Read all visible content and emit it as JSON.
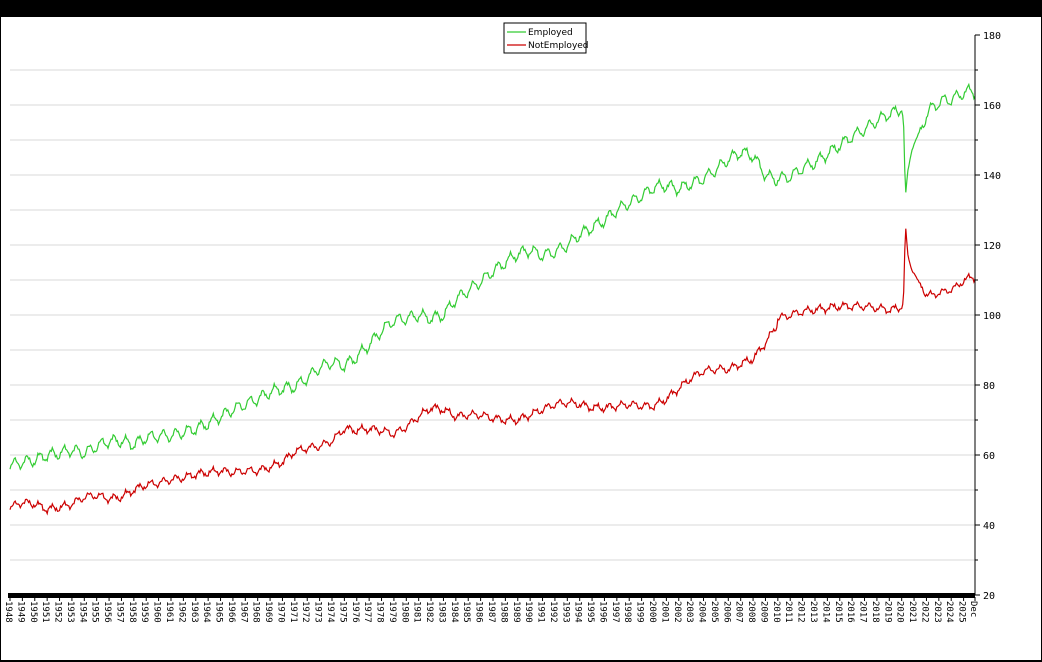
{
  "chart_data": {
    "type": "line",
    "title": "",
    "xlabel": "",
    "ylabel": "",
    "ylim": [
      20,
      180
    ],
    "y_ticks": [
      20,
      40,
      60,
      80,
      100,
      120,
      140,
      160,
      180
    ],
    "x_tick_labels": [
      "1948",
      "1949",
      "1950",
      "1951",
      "1952",
      "1953",
      "1954",
      "1955",
      "1956",
      "1957",
      "1958",
      "1959",
      "1960",
      "1961",
      "1962",
      "1963",
      "1964",
      "1965",
      "1966",
      "1967",
      "1968",
      "1969",
      "1970",
      "1971",
      "1972",
      "1973",
      "1974",
      "1975",
      "1976",
      "1977",
      "1978",
      "1979",
      "1980",
      "1981",
      "1982",
      "1983",
      "1984",
      "1985",
      "1986",
      "1987",
      "1988",
      "1989",
      "1990",
      "1991",
      "1992",
      "1993",
      "1994",
      "1995",
      "1996",
      "1997",
      "1998",
      "1999",
      "2000",
      "2001",
      "2002",
      "2003",
      "2004",
      "2005",
      "2006",
      "2007",
      "2008",
      "2009",
      "2010",
      "2011",
      "2012",
      "2013",
      "2014",
      "2015",
      "2016",
      "2017",
      "2018",
      "2019",
      "2020",
      "2021",
      "2022",
      "2023",
      "2024",
      "2025",
      "Dec"
    ],
    "x_range": [
      1948,
      2025.92
    ],
    "grid": "horizontal",
    "legend_position": "top-center",
    "seasonal_amplitude": {
      "Employed": 1.5,
      "NotEmployed": 0.9
    },
    "series": [
      {
        "name": "Employed",
        "color": "#33cc33",
        "points": [
          [
            1948,
            57
          ],
          [
            1949,
            58
          ],
          [
            1950,
            58.5
          ],
          [
            1951,
            60
          ],
          [
            1952,
            60.5
          ],
          [
            1953,
            61.5
          ],
          [
            1954,
            60.5
          ],
          [
            1955,
            62.5
          ],
          [
            1956,
            64
          ],
          [
            1957,
            64
          ],
          [
            1958,
            63
          ],
          [
            1959,
            65
          ],
          [
            1960,
            65.5
          ],
          [
            1961,
            65.5
          ],
          [
            1962,
            66.5
          ],
          [
            1963,
            67.5
          ],
          [
            1964,
            69
          ],
          [
            1965,
            71
          ],
          [
            1966,
            73
          ],
          [
            1967,
            74.5
          ],
          [
            1968,
            76
          ],
          [
            1969,
            78
          ],
          [
            1970,
            79
          ],
          [
            1971,
            79.5
          ],
          [
            1972,
            82
          ],
          [
            1973,
            85
          ],
          [
            1974,
            86.5
          ],
          [
            1975,
            85.5
          ],
          [
            1976,
            88
          ],
          [
            1977,
            91.5
          ],
          [
            1978,
            95.5
          ],
          [
            1979,
            98.5
          ],
          [
            1980,
            99
          ],
          [
            1981,
            100
          ],
          [
            1982,
            99
          ],
          [
            1983,
            100
          ],
          [
            1984,
            104.5
          ],
          [
            1985,
            107
          ],
          [
            1986,
            109.5
          ],
          [
            1987,
            112.5
          ],
          [
            1988,
            115
          ],
          [
            1989,
            117.5
          ],
          [
            1990,
            118.5
          ],
          [
            1991,
            117
          ],
          [
            1992,
            118
          ],
          [
            1993,
            120
          ],
          [
            1994,
            123
          ],
          [
            1995,
            125
          ],
          [
            1996,
            127
          ],
          [
            1997,
            130
          ],
          [
            1998,
            132
          ],
          [
            1999,
            134
          ],
          [
            2000,
            136.5
          ],
          [
            2001,
            137
          ],
          [
            2002,
            136
          ],
          [
            2003,
            137.5
          ],
          [
            2004,
            139
          ],
          [
            2005,
            141.5
          ],
          [
            2006,
            144.5
          ],
          [
            2007,
            146.5
          ],
          [
            2008,
            145.5
          ],
          [
            2009,
            140
          ],
          [
            2009.9,
            138.5
          ],
          [
            2010,
            139
          ],
          [
            2011,
            139.5
          ],
          [
            2012,
            142
          ],
          [
            2013,
            143.5
          ],
          [
            2014,
            146
          ],
          [
            2015,
            148.5
          ],
          [
            2016,
            151
          ],
          [
            2017,
            153
          ],
          [
            2018,
            155.5
          ],
          [
            2019,
            157.5
          ],
          [
            2020.0,
            158.5
          ],
          [
            2020.15,
            156
          ],
          [
            2020.3,
            133.5
          ],
          [
            2020.5,
            141
          ],
          [
            2020.8,
            147
          ],
          [
            2021,
            149
          ],
          [
            2021.5,
            152.5
          ],
          [
            2022,
            157
          ],
          [
            2022.5,
            159.5
          ],
          [
            2023,
            160.5
          ],
          [
            2023.5,
            161.5
          ],
          [
            2024,
            161.5
          ],
          [
            2024.5,
            162.5
          ],
          [
            2025,
            163.5
          ],
          [
            2025.5,
            164
          ],
          [
            2025.92,
            163.8
          ]
        ]
      },
      {
        "name": "NotEmployed",
        "color": "#cc0000",
        "points": [
          [
            1948,
            45
          ],
          [
            1949,
            46.5
          ],
          [
            1950,
            46
          ],
          [
            1951,
            44.5
          ],
          [
            1952,
            45
          ],
          [
            1953,
            46
          ],
          [
            1954,
            48
          ],
          [
            1955,
            48.5
          ],
          [
            1956,
            47.5
          ],
          [
            1957,
            48
          ],
          [
            1958,
            50
          ],
          [
            1959,
            51.5
          ],
          [
            1960,
            52
          ],
          [
            1961,
            53
          ],
          [
            1962,
            53.5
          ],
          [
            1963,
            54.5
          ],
          [
            1964,
            55
          ],
          [
            1965,
            55.5
          ],
          [
            1966,
            55
          ],
          [
            1967,
            55.5
          ],
          [
            1968,
            55.5
          ],
          [
            1969,
            56.5
          ],
          [
            1970,
            58
          ],
          [
            1971,
            61
          ],
          [
            1972,
            62
          ],
          [
            1973,
            62.5
          ],
          [
            1974,
            64
          ],
          [
            1975,
            67.5
          ],
          [
            1976,
            67
          ],
          [
            1977,
            67.5
          ],
          [
            1978,
            67
          ],
          [
            1979,
            66
          ],
          [
            1980,
            68
          ],
          [
            1981,
            71
          ],
          [
            1982,
            73.5
          ],
          [
            1983,
            73
          ],
          [
            1984,
            71
          ],
          [
            1985,
            71.5
          ],
          [
            1986,
            71.5
          ],
          [
            1987,
            70.5
          ],
          [
            1988,
            70
          ],
          [
            1989,
            70
          ],
          [
            1990,
            71.5
          ],
          [
            1991,
            73
          ],
          [
            1992,
            74.5
          ],
          [
            1993,
            75
          ],
          [
            1994,
            74.5
          ],
          [
            1995,
            73.5
          ],
          [
            1996,
            73.5
          ],
          [
            1997,
            74
          ],
          [
            1998,
            74.5
          ],
          [
            1999,
            74
          ],
          [
            2000,
            74
          ],
          [
            2001,
            76
          ],
          [
            2002,
            79
          ],
          [
            2003,
            82
          ],
          [
            2004,
            84
          ],
          [
            2005,
            84.5
          ],
          [
            2006,
            84.5
          ],
          [
            2007,
            86
          ],
          [
            2008,
            87.5
          ],
          [
            2009,
            92
          ],
          [
            2009.9,
            97
          ],
          [
            2010,
            99
          ],
          [
            2011,
            100
          ],
          [
            2012,
            101
          ],
          [
            2013,
            101.5
          ],
          [
            2014,
            102
          ],
          [
            2015,
            102.5
          ],
          [
            2016,
            102.5
          ],
          [
            2017,
            102.5
          ],
          [
            2018,
            102
          ],
          [
            2019,
            101.5
          ],
          [
            2020.0,
            102
          ],
          [
            2020.15,
            104
          ],
          [
            2020.3,
            126
          ],
          [
            2020.5,
            117
          ],
          [
            2020.8,
            113
          ],
          [
            2021,
            112
          ],
          [
            2021.5,
            108.5
          ],
          [
            2022,
            106
          ],
          [
            2022.5,
            105.5
          ],
          [
            2023,
            106.5
          ],
          [
            2023.5,
            106.5
          ],
          [
            2024,
            107.5
          ],
          [
            2024.5,
            108
          ],
          [
            2025,
            110
          ],
          [
            2025.5,
            110.5
          ],
          [
            2025.92,
            111
          ]
        ]
      }
    ]
  }
}
